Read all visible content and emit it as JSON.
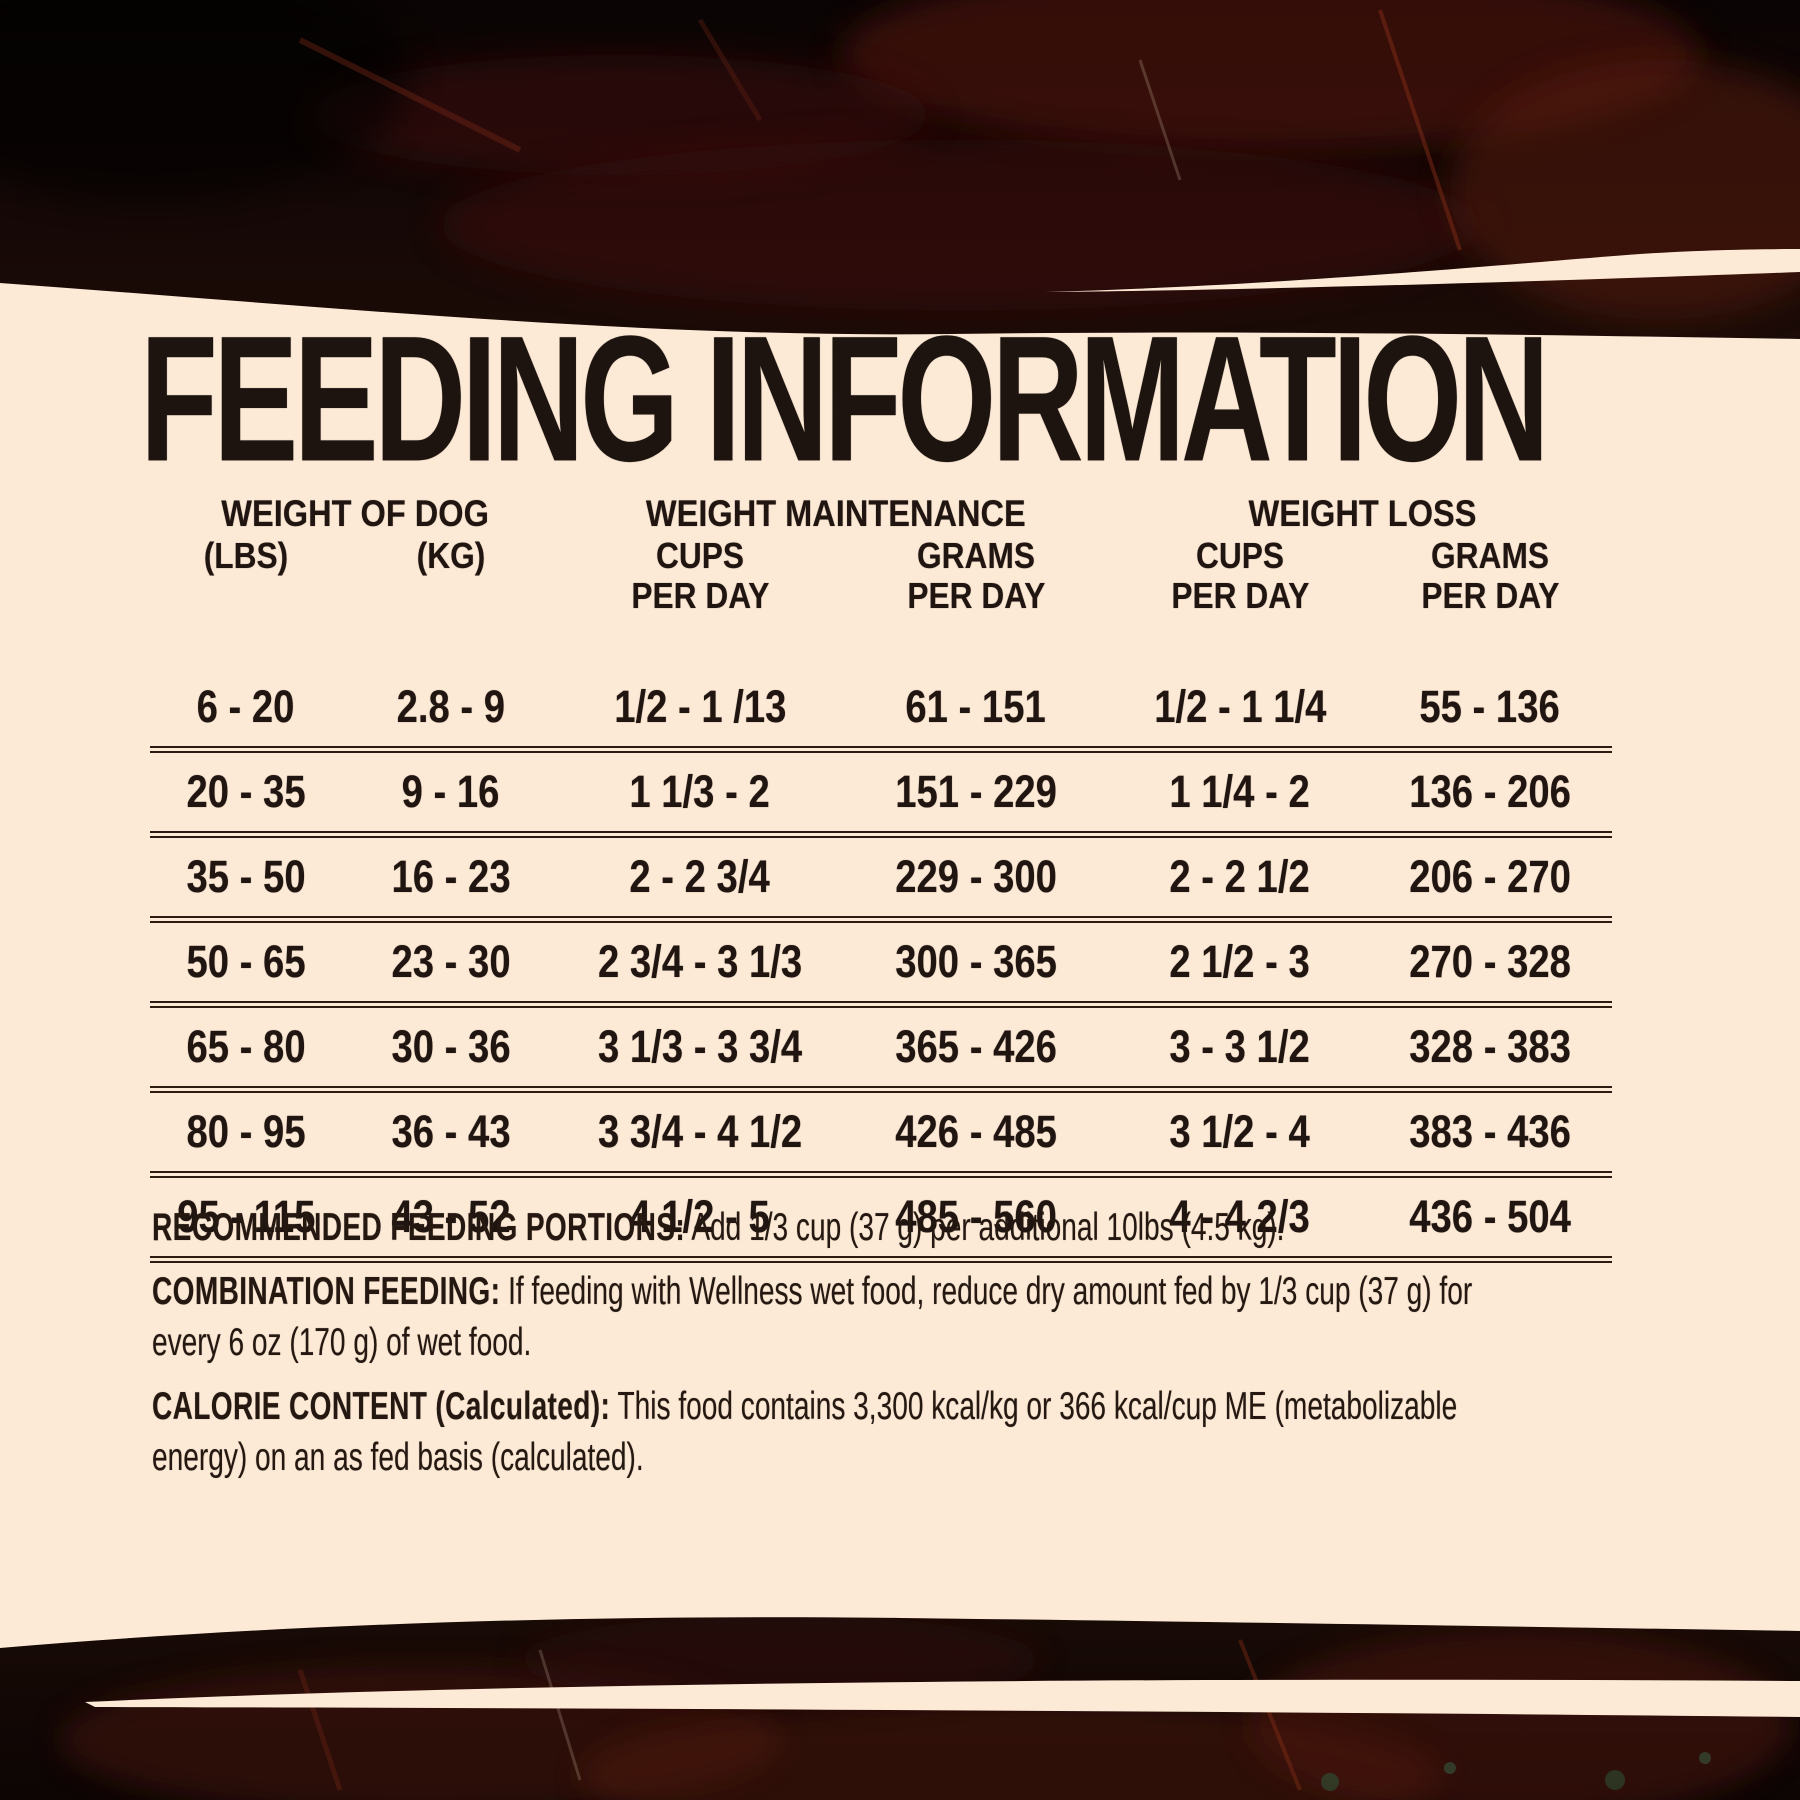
{
  "page": {
    "title": "FEEDING INFORMATION"
  },
  "table": {
    "group_headers": [
      {
        "label": "WEIGHT OF DOG"
      },
      {
        "label": "WEIGHT MAINTENANCE"
      },
      {
        "label": "WEIGHT LOSS"
      }
    ],
    "columns": [
      {
        "label": "(LBS)",
        "sub": ""
      },
      {
        "label": "(KG)",
        "sub": ""
      },
      {
        "label": "CUPS",
        "sub": "PER DAY"
      },
      {
        "label": "GRAMS",
        "sub": "PER DAY"
      },
      {
        "label": "CUPS",
        "sub": "PER DAY"
      },
      {
        "label": "GRAMS",
        "sub": "PER DAY"
      }
    ],
    "rows": [
      [
        "6 - 20",
        "2.8 - 9",
        "1/2 - 1 /13",
        "61 - 151",
        "1/2 - 1 1/4",
        "55 - 136"
      ],
      [
        "20 - 35",
        "9 - 16",
        "1 1/3 - 2",
        "151 - 229",
        "1 1/4 - 2",
        "136 - 206"
      ],
      [
        "35 - 50",
        "16 - 23",
        "2 - 2 3/4",
        "229 - 300",
        "2 - 2 1/2",
        "206 - 270"
      ],
      [
        "50 - 65",
        "23 - 30",
        "2 3/4 - 3 1/3",
        "300 - 365",
        "2 1/2 - 3",
        "270 - 328"
      ],
      [
        "65 - 80",
        "30 - 36",
        "3 1/3 - 3 3/4",
        "365 - 426",
        "3 - 3 1/2",
        "328 - 383"
      ],
      [
        "80 - 95",
        "36 - 43",
        "3 3/4 - 4 1/2",
        "426 - 485",
        "3 1/2 - 4",
        "383 - 436"
      ],
      [
        "95 - 115",
        "43 - 52",
        "4 1/2 - 5",
        "485 - 560",
        "4 - 4 2/3",
        "436 - 504"
      ]
    ]
  },
  "notes": [
    {
      "lead": "RECOMMENDED FEEDING PORTIONS:",
      "text": " Add 1/3 cup (37 g) per additional 10lbs (4.5 kg)."
    },
    {
      "lead": "COMBINATION FEEDING:",
      "text": " If feeding with Wellness wet food, reduce dry amount fed by 1/3 cup (37 g) for every 6 oz (170 g) of wet food."
    },
    {
      "lead": "CALORIE CONTENT (Calculated):",
      "text": " This food contains 3,300 kcal/kg or 366 kcal/cup ME (metabolizable energy) on an as fed basis (calculated)."
    }
  ],
  "colors": {
    "background_cream": "#fdead6",
    "ink": "#201510",
    "rule": "#2b1b11",
    "grunge_black": "#0c0504",
    "grunge_red": "#51170c",
    "grunge_green_fleck": "#2c5a3a"
  }
}
